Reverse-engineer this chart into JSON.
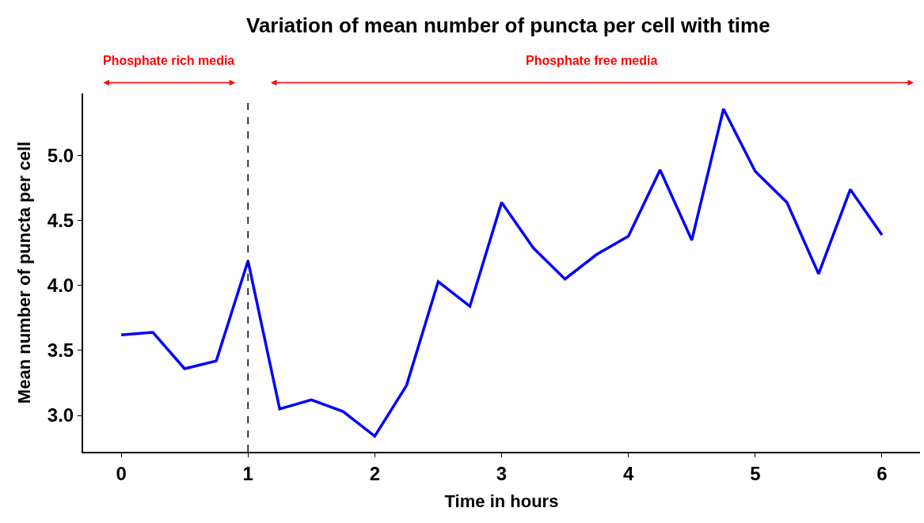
{
  "chart_data": {
    "type": "line",
    "title": "Variation of mean number of puncta per cell with time",
    "xlabel": "Time in hours",
    "ylabel": "Mean number of puncta per cell",
    "x": [
      0,
      0.25,
      0.5,
      0.75,
      1,
      1.25,
      1.5,
      1.75,
      2,
      2.25,
      2.5,
      2.75,
      3,
      3.25,
      3.5,
      3.75,
      4,
      4.25,
      4.5,
      4.75,
      5,
      5.25,
      5.5,
      5.75,
      6
    ],
    "series": [
      {
        "color": "#0000ff",
        "values": [
          3.62,
          3.64,
          3.36,
          3.42,
          4.19,
          3.05,
          3.12,
          3.03,
          2.84,
          3.23,
          4.03,
          3.84,
          4.64,
          4.29,
          4.05,
          4.24,
          4.38,
          4.89,
          4.35,
          5.36,
          4.88,
          4.64,
          4.09,
          4.74,
          4.39
        ]
      }
    ],
    "xlim": [
      -0.3,
      6.3
    ],
    "xticks": [
      0,
      1,
      2,
      3,
      4,
      5,
      6
    ],
    "ylim": [
      2.72,
      5.48
    ],
    "yticks": [
      {
        "value": 3.0,
        "label": "3.0"
      },
      {
        "value": 3.5,
        "label": "3.5"
      },
      {
        "value": 4.0,
        "label": "4.0"
      },
      {
        "value": 4.5,
        "label": "4.5"
      },
      {
        "value": 5.0,
        "label": "5.0"
      }
    ],
    "ref_lines": [
      {
        "axis": "x",
        "value": 1,
        "color": "#000000",
        "line_style": "dashed"
      }
    ],
    "annotations": [
      "Phosphate rich media",
      "Phosphate free media"
    ],
    "marker": "none",
    "line_style": "solid"
  }
}
